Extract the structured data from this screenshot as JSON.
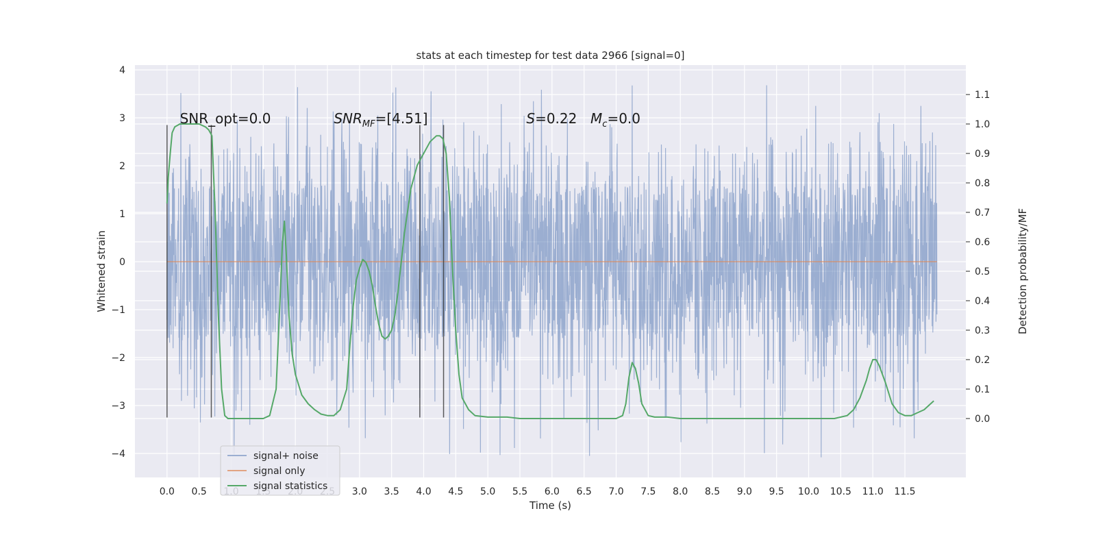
{
  "chart_data": {
    "type": "line",
    "title": "stats at each timestep for test data 2966 [signal=0]",
    "xlabel": "Time (s)",
    "ylabel_left": "Whitened strain",
    "ylabel_right": "Detection probability/MF",
    "xlim": [
      -0.5,
      12.45
    ],
    "ylim_left": [
      -4.5,
      4.1
    ],
    "ylim_right": [
      -0.2,
      1.2
    ],
    "x_ticks": [
      "0.0",
      "0.5",
      "1.0",
      "1.5",
      "2.0",
      "2.5",
      "3.0",
      "3.5",
      "4.0",
      "4.5",
      "5.0",
      "5.5",
      "6.0",
      "6.5",
      "7.0",
      "7.5",
      "8.0",
      "8.5",
      "9.0",
      "9.5",
      "10.0",
      "10.5",
      "11.0",
      "11.5"
    ],
    "y_ticks_left": [
      "4",
      "3",
      "2",
      "1",
      "0",
      "−1",
      "−2",
      "−3",
      "−4"
    ],
    "y_ticks_right": [
      "1.1",
      "1.0",
      "0.9",
      "0.8",
      "0.7",
      "0.6",
      "0.5",
      "0.4",
      "0.3",
      "0.2",
      "0.1",
      "0.0"
    ],
    "grid": true,
    "legend_position": "lower-left",
    "annotations": [
      {
        "text": "SNR_opt=0.0",
        "x": 0.2
      },
      {
        "text": "SNR",
        "sub": "MF",
        "suffix": "=[4.51]",
        "x": 2.6,
        "italic": true
      },
      {
        "text": "S",
        "suffix": "=0.22",
        "x": 5.6,
        "italic": true
      },
      {
        "text": "M",
        "sub": "c",
        "suffix": "=0.0",
        "x": 6.6,
        "italic": true
      }
    ],
    "vertical_markers": [
      {
        "x": 0.0,
        "ymin": -3.25,
        "ymax": 2.85
      },
      {
        "x": 0.69,
        "ymin": -3.25,
        "ymax": 2.85
      },
      {
        "x": 3.94,
        "ymin": -3.25,
        "ymax": 2.85
      },
      {
        "x": 4.31,
        "ymin": -3.25,
        "ymax": 2.85
      }
    ],
    "series": [
      {
        "name": "signal+ noise",
        "color": "#4c72b0",
        "axis": "left",
        "x_range": [
          0.0,
          12.0
        ],
        "typical_abs_max": 1.6,
        "peak_max": 3.7,
        "peak_min": -4.1
      },
      {
        "name": "signal only",
        "color": "#dd8452",
        "axis": "left",
        "x": [
          0.0,
          12.0
        ],
        "y": [
          0.0,
          0.0
        ]
      },
      {
        "name": "signal statistics",
        "color": "#55a868",
        "axis": "right",
        "x": [
          0.0,
          0.02,
          0.05,
          0.08,
          0.12,
          0.2,
          0.3,
          0.4,
          0.5,
          0.6,
          0.65,
          0.7,
          0.75,
          0.8,
          0.85,
          0.9,
          0.95,
          1.0,
          1.1,
          1.3,
          1.5,
          1.6,
          1.7,
          1.75,
          1.8,
          1.83,
          1.86,
          1.9,
          1.95,
          2.0,
          2.1,
          2.2,
          2.3,
          2.4,
          2.5,
          2.6,
          2.7,
          2.8,
          2.85,
          2.9,
          2.95,
          3.0,
          3.05,
          3.1,
          3.15,
          3.2,
          3.25,
          3.3,
          3.35,
          3.4,
          3.45,
          3.5,
          3.55,
          3.6,
          3.7,
          3.8,
          3.9,
          4.0,
          4.1,
          4.2,
          4.25,
          4.3,
          4.35,
          4.4,
          4.45,
          4.5,
          4.55,
          4.6,
          4.7,
          4.8,
          5.0,
          5.3,
          5.5,
          6.0,
          6.5,
          7.0,
          7.1,
          7.15,
          7.2,
          7.25,
          7.3,
          7.35,
          7.4,
          7.5,
          7.6,
          7.8,
          8.0,
          8.5,
          9.0,
          9.5,
          10.0,
          10.4,
          10.5,
          10.6,
          10.7,
          10.8,
          10.9,
          10.95,
          11.0,
          11.05,
          11.1,
          11.2,
          11.3,
          11.4,
          11.5,
          11.6,
          11.7,
          11.8,
          11.9,
          11.95
        ],
        "y": [
          0.73,
          0.82,
          0.9,
          0.97,
          0.99,
          1.0,
          1.0,
          1.0,
          1.0,
          0.99,
          0.98,
          0.96,
          0.7,
          0.35,
          0.1,
          0.01,
          0.0,
          0.0,
          0.0,
          0.0,
          0.0,
          0.01,
          0.1,
          0.35,
          0.6,
          0.67,
          0.55,
          0.35,
          0.22,
          0.15,
          0.08,
          0.05,
          0.03,
          0.015,
          0.01,
          0.01,
          0.03,
          0.1,
          0.25,
          0.38,
          0.47,
          0.51,
          0.54,
          0.53,
          0.5,
          0.45,
          0.38,
          0.32,
          0.28,
          0.27,
          0.28,
          0.3,
          0.35,
          0.43,
          0.63,
          0.78,
          0.86,
          0.9,
          0.94,
          0.96,
          0.96,
          0.95,
          0.9,
          0.75,
          0.5,
          0.3,
          0.15,
          0.07,
          0.03,
          0.01,
          0.005,
          0.005,
          0.0,
          0.0,
          0.0,
          0.0,
          0.01,
          0.05,
          0.14,
          0.19,
          0.17,
          0.12,
          0.05,
          0.01,
          0.005,
          0.005,
          0.0,
          0.0,
          0.0,
          0.0,
          0.0,
          0.0,
          0.005,
          0.01,
          0.03,
          0.07,
          0.13,
          0.17,
          0.2,
          0.2,
          0.18,
          0.12,
          0.05,
          0.02,
          0.01,
          0.01,
          0.02,
          0.03,
          0.05,
          0.06
        ]
      }
    ]
  }
}
